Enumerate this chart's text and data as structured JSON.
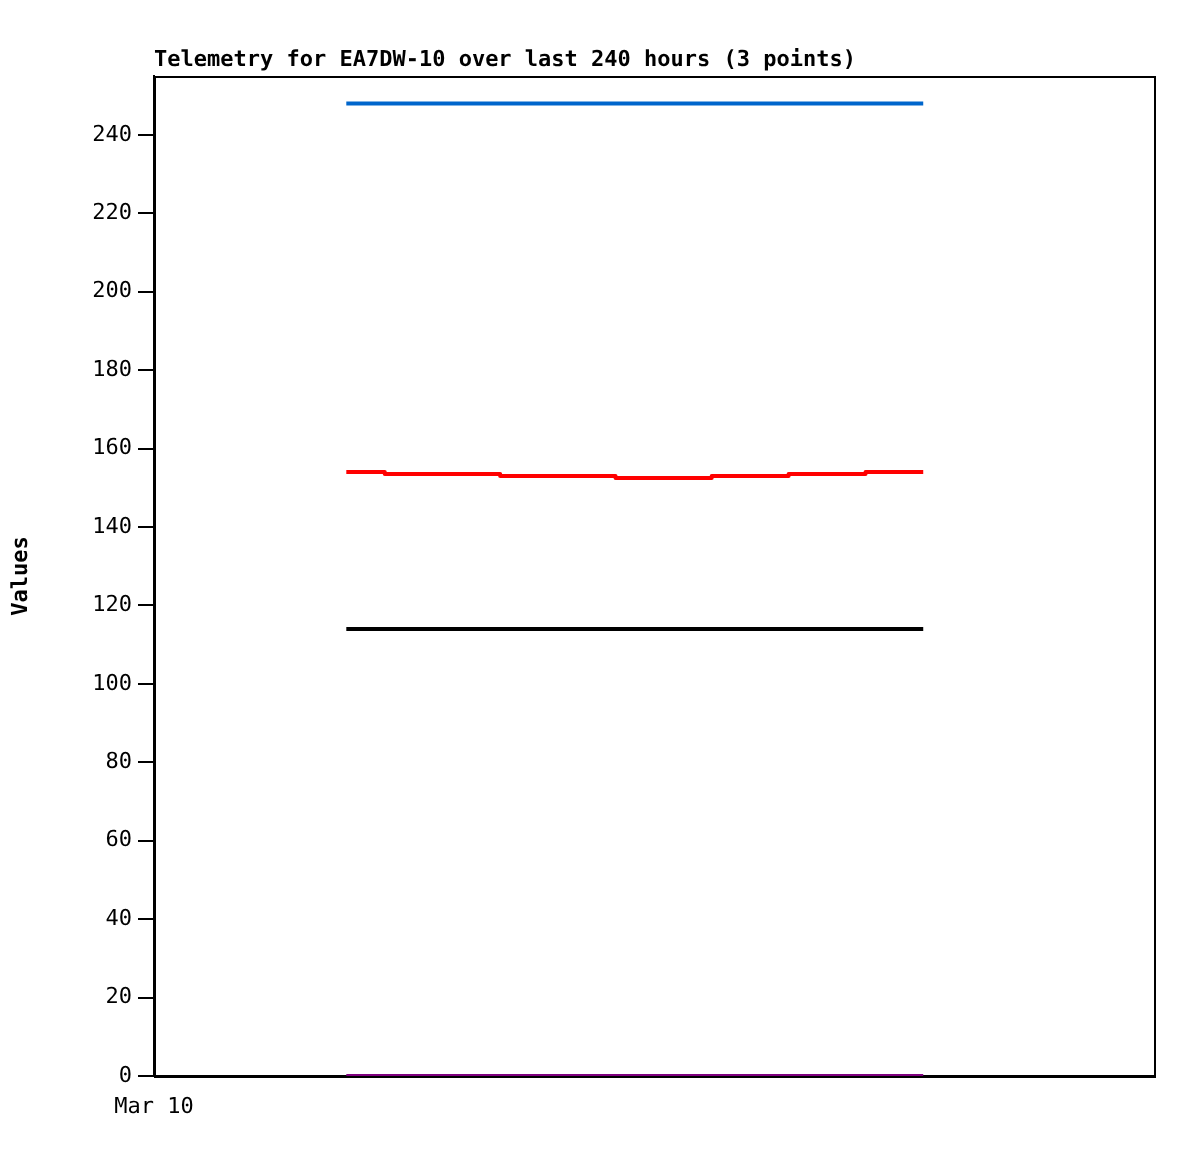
{
  "chart_data": {
    "type": "line",
    "title": "Telemetry for EA7DW-10 over last 240 hours (3 points)",
    "ylabel": "Values",
    "annotations": [
      "Mar 10"
    ],
    "categories": [
      null,
      null,
      null,
      null,
      null,
      null,
      null,
      null,
      null,
      null,
      null,
      null,
      null,
      null,
      null,
      null,
      null,
      null,
      null,
      null,
      null,
      null,
      null,
      null,
      null,
      null,
      null,
      null,
      null,
      null,
      null,
      null,
      null,
      null,
      null,
      null,
      null,
      null,
      null,
      null,
      null,
      null,
      null,
      null,
      null,
      null,
      null,
      null,
      null,
      null,
      null,
      null,
      null
    ],
    "ylim": [
      0,
      255
    ],
    "yticks": [
      0,
      20,
      40,
      60,
      80,
      100,
      120,
      140,
      160,
      180,
      200,
      220,
      240
    ],
    "grid": false,
    "legend": false,
    "marker": "none",
    "line_style": "solid",
    "series": [
      {
        "color": "#0066cc",
        "values": [
          null,
          null,
          null,
          null,
          null,
          null,
          null,
          null,
          null,
          null,
          248,
          248,
          248,
          248,
          248,
          248,
          248,
          248,
          248,
          248,
          248,
          248,
          248,
          248,
          248,
          248,
          248,
          248,
          248,
          248,
          248,
          248,
          248,
          248,
          248,
          248,
          248,
          248,
          248,
          248,
          248,
          null,
          null,
          null,
          null,
          null,
          null,
          null,
          null,
          null,
          null,
          null,
          null
        ]
      },
      {
        "type": "step",
        "color": "#ff0000",
        "values": [
          null,
          null,
          null,
          null,
          null,
          null,
          null,
          null,
          null,
          null,
          154,
          154,
          154,
          153.5,
          153.5,
          153.5,
          153.5,
          153.5,
          153.5,
          153,
          153,
          153,
          153,
          153,
          153,
          152.5,
          152.5,
          152.5,
          152.5,
          152.5,
          153,
          153,
          153,
          153,
          153.5,
          153.5,
          153.5,
          153.5,
          154,
          154,
          154,
          null,
          null,
          null,
          null,
          null,
          null,
          null,
          null,
          null,
          null,
          null,
          null
        ]
      },
      {
        "color": "#000000",
        "values": [
          null,
          null,
          null,
          null,
          null,
          null,
          null,
          null,
          null,
          null,
          114,
          114,
          114,
          114,
          114,
          114,
          114,
          114,
          114,
          114,
          114,
          114,
          114,
          114,
          114,
          114,
          114,
          114,
          114,
          114,
          114,
          114,
          114,
          114,
          114,
          114,
          114,
          114,
          114,
          114,
          114,
          null,
          null,
          null,
          null,
          null,
          null,
          null,
          null,
          null,
          null,
          null,
          null
        ]
      },
      {
        "color": "#800080",
        "values": [
          null,
          null,
          null,
          null,
          null,
          null,
          null,
          null,
          null,
          null,
          0,
          0,
          0,
          0,
          0,
          0,
          0,
          0,
          0,
          0,
          0,
          0,
          0,
          0,
          0,
          0,
          0,
          0,
          0,
          0,
          0,
          0,
          0,
          0,
          0,
          0,
          0,
          0,
          0,
          0,
          0,
          null,
          null,
          null,
          null,
          null,
          null,
          null,
          null,
          null,
          null,
          null,
          null
        ]
      }
    ]
  }
}
